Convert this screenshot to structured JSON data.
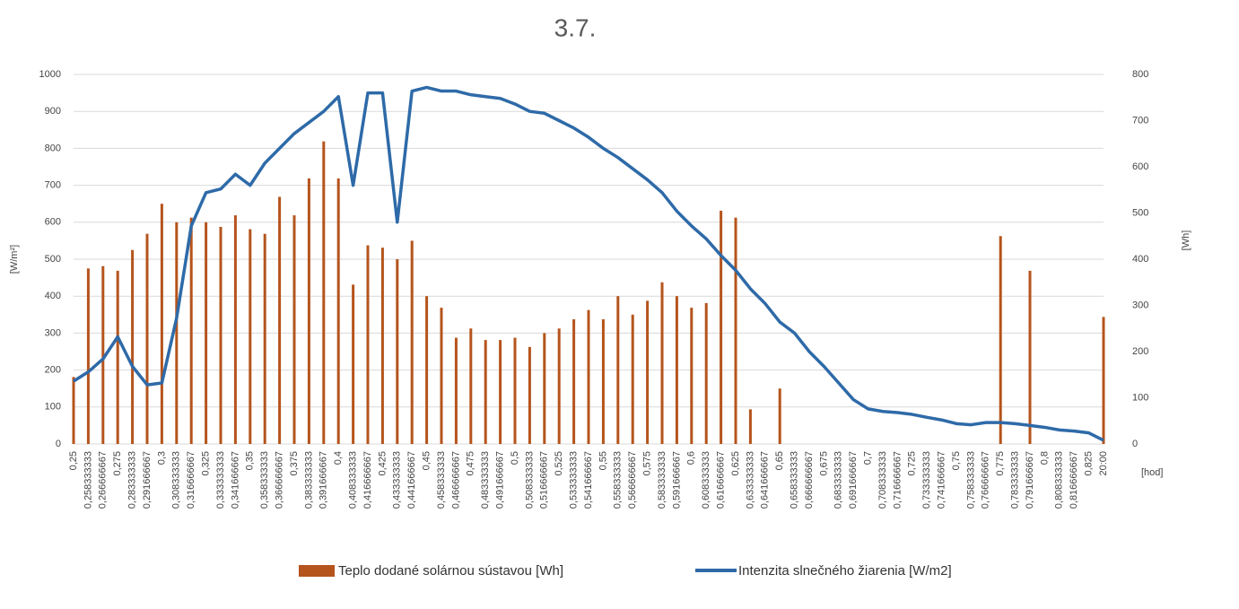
{
  "chart_data": {
    "type": "bar-line",
    "title": "3.7.",
    "y_label": "[W/m²]",
    "y2_label": "[Wh]",
    "x_label": "[hod]",
    "categories": [
      "0,25",
      "0,258333333",
      "0,266666667",
      "0,275",
      "0,283333333",
      "0,291666667",
      "0,3",
      "0,308333333",
      "0,316666667",
      "0,325",
      "0,333333333",
      "0,341666667",
      "0,35",
      "0,358333333",
      "0,366666667",
      "0,375",
      "0,383333333",
      "0,391666667",
      "0,4",
      "0,408333333",
      "0,416666667",
      "0,425",
      "0,433333333",
      "0,441666667",
      "0,45",
      "0,458333333",
      "0,466666667",
      "0,475",
      "0,483333333",
      "0,491666667",
      "0,5",
      "0,508333333",
      "0,516666667",
      "0,525",
      "0,533333333",
      "0,541666667",
      "0,55",
      "0,558333333",
      "0,566666667",
      "0,575",
      "0,583333333",
      "0,591666667",
      "0,6",
      "0,608333333",
      "0,616666667",
      "0,625",
      "0,633333333",
      "0,641666667",
      "0,65",
      "0,658333333",
      "0,666666667",
      "0,675",
      "0,683333333",
      "0,691666667",
      "0,7",
      "0,708333333",
      "0,716666667",
      "0,725",
      "0,733333333",
      "0,741666667",
      "0,75",
      "0,758333333",
      "0,766666667",
      "0,775",
      "0,783333333",
      "0,791666667",
      "0,8",
      "0,808333333",
      "0,816666667",
      "0,825",
      "20:00"
    ],
    "series": [
      {
        "name": "Teplo dodané  solárnou sústavou [Wh]",
        "type": "bar",
        "axis": "y2",
        "color": "#b5541c",
        "values": [
          145,
          380,
          385,
          375,
          420,
          455,
          520,
          480,
          490,
          480,
          470,
          495,
          465,
          455,
          535,
          495,
          575,
          655,
          575,
          345,
          430,
          425,
          400,
          440,
          320,
          295,
          230,
          250,
          225,
          225,
          230,
          210,
          240,
          250,
          270,
          290,
          270,
          320,
          280,
          310,
          350,
          320,
          295,
          305,
          505,
          490,
          75,
          0,
          120,
          0,
          0,
          0,
          0,
          0,
          0,
          0,
          0,
          0,
          0,
          0,
          0,
          0,
          0,
          450,
          0,
          375,
          0,
          0,
          0,
          0,
          275
        ]
      },
      {
        "name": "Intenzita slnečného  žiarenia  [W/m2]",
        "type": "line",
        "axis": "y",
        "color": "#2e6aa8",
        "values": [
          170,
          195,
          230,
          290,
          210,
          160,
          165,
          340,
          590,
          680,
          690,
          730,
          700,
          760,
          800,
          840,
          870,
          900,
          940,
          700,
          950,
          950,
          600,
          955,
          965,
          955,
          955,
          945,
          940,
          935,
          920,
          900,
          895,
          875,
          855,
          830,
          800,
          775,
          745,
          715,
          680,
          630,
          590,
          555,
          510,
          470,
          420,
          380,
          330,
          300,
          250,
          210,
          165,
          120,
          95,
          88,
          85,
          80,
          72,
          65,
          55,
          52,
          58,
          58,
          55,
          50,
          45,
          38,
          35,
          30,
          10
        ]
      }
    ],
    "ylim": [
      0,
      1000
    ],
    "yticks": [
      0,
      100,
      200,
      300,
      400,
      500,
      600,
      700,
      800,
      900,
      1000
    ],
    "y2lim": [
      0,
      800
    ],
    "y2ticks": [
      0,
      100,
      200,
      300,
      400,
      500,
      600,
      700,
      800
    ],
    "grid": true
  }
}
